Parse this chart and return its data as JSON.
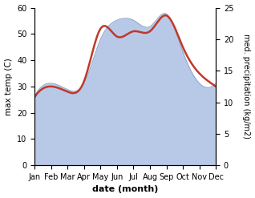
{
  "months": [
    "Jan",
    "Feb",
    "Mar",
    "Apr",
    "May",
    "Jun",
    "Jul",
    "Aug",
    "Sep",
    "Oct",
    "Nov",
    "Dec"
  ],
  "x": [
    1,
    2,
    3,
    4,
    5,
    6,
    7,
    8,
    9,
    10,
    11,
    12
  ],
  "temp": [
    26,
    30,
    28,
    32,
    52,
    49,
    51,
    51,
    57,
    45,
    35,
    30
  ],
  "precip_kg": [
    11,
    13,
    12,
    13,
    20,
    23,
    23,
    22,
    24,
    18,
    13,
    13
  ],
  "temp_color": "#c0392b",
  "precip_fill_color": "#b8c9e8",
  "precip_line_color": "#8fa8cc",
  "left_ylim": [
    0,
    60
  ],
  "right_ylim": [
    0,
    25
  ],
  "left_ylabel": "max temp (C)",
  "right_ylabel": "med. precipitation (kg/m2)",
  "xlabel": "date (month)",
  "left_yticks": [
    0,
    10,
    20,
    30,
    40,
    50,
    60
  ],
  "right_yticks": [
    0,
    5,
    10,
    15,
    20,
    25
  ],
  "figsize": [
    3.18,
    2.47
  ],
  "dpi": 100,
  "bg_color": "#ffffff"
}
